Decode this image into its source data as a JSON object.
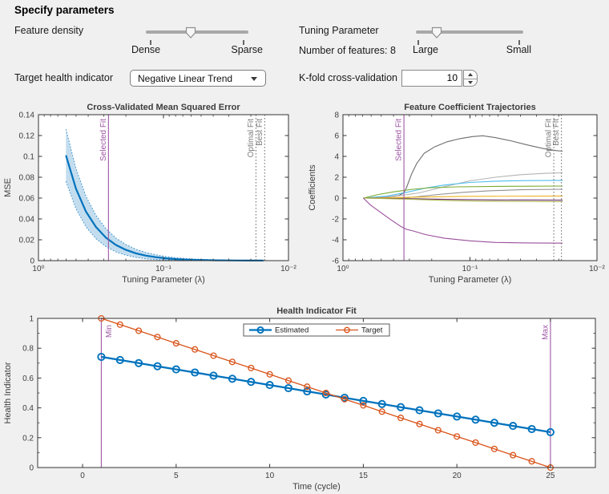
{
  "header": {
    "title": "Specify parameters"
  },
  "controls": {
    "feature_density": {
      "label": "Feature density",
      "min_label": "Dense",
      "max_label": "Sparse",
      "value_pct": 44
    },
    "tuning_parameter": {
      "label": "Tuning Parameter",
      "min_label": "Large",
      "max_label": "Small",
      "value_pct": 19
    },
    "number_of_features": {
      "text": "Number of features: 8"
    },
    "target_health_indicator": {
      "label": "Target health indicator",
      "value": "Negative Linear Trend"
    },
    "kfold": {
      "label": "K-fold cross-validation",
      "value": "10"
    }
  },
  "colors": {
    "background": "#f0f0f0",
    "matlab_blue": "#0072BD",
    "matlab_orange": "#D95319",
    "annotation_purple": "#9E57A5",
    "annotation_gray": "#7a7a7a"
  },
  "chart_data": [
    {
      "id": "mse",
      "type": "line",
      "title": "Cross-Validated Mean Squared Error",
      "xlabel": "Tuning  Parameter  (λ)",
      "ylabel": "MSE",
      "x_scale": "lambda decreasing left-to-right, plotted as u = -log10(lambda)",
      "xlim": [
        0,
        2
      ],
      "ylim": [
        0,
        0.14
      ],
      "xticks": [
        {
          "v": 0,
          "label": "10⁰"
        },
        {
          "v": 1,
          "label": "10⁻¹"
        },
        {
          "v": 2,
          "label": "10⁻²"
        }
      ],
      "yticks": [
        {
          "v": 0,
          "label": "0"
        },
        {
          "v": 0.02,
          "label": "0.02"
        },
        {
          "v": 0.04,
          "label": "0.04"
        },
        {
          "v": 0.06,
          "label": "0.06"
        },
        {
          "v": 0.08,
          "label": "0.08"
        },
        {
          "v": 0.1,
          "label": "0.1"
        },
        {
          "v": 0.12,
          "label": "0.12"
        },
        {
          "v": 0.14,
          "label": "0.14"
        }
      ],
      "u": [
        0.22,
        0.3,
        0.38,
        0.46,
        0.54,
        0.62,
        0.7,
        0.78,
        0.86,
        0.94,
        1.02,
        1.1,
        1.18,
        1.26,
        1.34,
        1.42,
        1.5,
        1.58,
        1.66,
        1.74,
        1.8
      ],
      "mse": [
        0.101,
        0.069,
        0.047,
        0.0322,
        0.022,
        0.015,
        0.0103,
        0.007,
        0.0048,
        0.0033,
        0.0022,
        0.0015,
        0.001,
        0.0007,
        0.0005,
        0.0003,
        0.0002,
        0.00016,
        0.0001,
        7e-05,
        5e-05
      ],
      "band_upper": [
        0.126,
        0.0882,
        0.0618,
        0.0434,
        0.0306,
        0.0216,
        0.0154,
        0.0109,
        0.0078,
        0.0056,
        0.0039,
        0.0028,
        0.002,
        0.0015,
        0.0011,
        0.0008,
        0.0006,
        0.00046,
        0.0003,
        0.00027,
        0.0002
      ],
      "band_lower": [
        0.076,
        0.0498,
        0.0324,
        0.021,
        0.0134,
        0.0084,
        0.0052,
        0.0031,
        0.0018,
        0.001,
        0.0005,
        0.0002,
        0,
        0,
        0,
        0,
        0,
        0,
        0,
        0,
        0
      ],
      "line_color": "#0072BD",
      "band_fill": "#c3ddef",
      "band_edge_color": "#2f8ac6",
      "vlines": [
        {
          "u": 0.56,
          "label": "Selected Fit",
          "color": "#9E57A5",
          "style": "solid",
          "label_side": "left"
        },
        {
          "u": 1.74,
          "label": "Optimal Fit",
          "color": "#7a7a7a",
          "style": "dotted",
          "label_side": "left"
        },
        {
          "u": 1.81,
          "label": "Best Fit",
          "color": "#7a7a7a",
          "style": "dotted",
          "label_side": "left"
        }
      ]
    },
    {
      "id": "coef",
      "type": "line",
      "title": "Feature Coefficient Trajectories",
      "xlabel": "Tuning  Parameter  (λ)",
      "ylabel": "Coefficients",
      "x_scale": "lambda decreasing left-to-right, plotted as u = -log10(lambda)",
      "xlim": [
        0,
        2
      ],
      "ylim": [
        -6,
        8
      ],
      "xticks": [
        {
          "v": 0,
          "label": "10⁰"
        },
        {
          "v": 1,
          "label": "10⁻¹"
        },
        {
          "v": 2,
          "label": "10⁻²"
        }
      ],
      "yticks": [
        {
          "v": -6,
          "label": "-6"
        },
        {
          "v": -4,
          "label": "-4"
        },
        {
          "v": -2,
          "label": "-2"
        },
        {
          "v": 0,
          "label": "0"
        },
        {
          "v": 2,
          "label": "2"
        },
        {
          "v": 4,
          "label": "4"
        },
        {
          "v": 6,
          "label": "6"
        },
        {
          "v": 8,
          "label": "8"
        }
      ],
      "series": [
        {
          "name": "coef-1",
          "color": "#6e6e6e",
          "points": [
            [
              0.16,
              0
            ],
            [
              0.35,
              0.1
            ],
            [
              0.44,
              0.25
            ],
            [
              0.48,
              0.5
            ],
            [
              0.5,
              1.0
            ],
            [
              0.54,
              2.3
            ],
            [
              0.58,
              3.3
            ],
            [
              0.64,
              4.3
            ],
            [
              0.72,
              4.9
            ],
            [
              0.82,
              5.4
            ],
            [
              0.92,
              5.7
            ],
            [
              1.02,
              5.9
            ],
            [
              1.1,
              5.98
            ],
            [
              1.2,
              5.8
            ],
            [
              1.32,
              5.5
            ],
            [
              1.45,
              5.1
            ],
            [
              1.58,
              4.75
            ],
            [
              1.68,
              4.55
            ],
            [
              1.73,
              4.5
            ]
          ]
        },
        {
          "name": "coef-2",
          "color": "#b4b4b4",
          "points": [
            [
              0.16,
              0
            ],
            [
              0.4,
              0.15
            ],
            [
              0.6,
              0.5
            ],
            [
              0.8,
              1.1
            ],
            [
              1.0,
              1.65
            ],
            [
              1.2,
              2.0
            ],
            [
              1.4,
              2.25
            ],
            [
              1.6,
              2.38
            ],
            [
              1.73,
              2.42
            ]
          ]
        },
        {
          "name": "coef-3",
          "color": "#4DBEEE",
          "points": [
            [
              0.16,
              0
            ],
            [
              0.35,
              0.2
            ],
            [
              0.5,
              0.55
            ],
            [
              0.65,
              0.95
            ],
            [
              0.8,
              1.25
            ],
            [
              1.0,
              1.5
            ],
            [
              1.2,
              1.62
            ],
            [
              1.45,
              1.68
            ],
            [
              1.73,
              1.7
            ]
          ]
        },
        {
          "name": "coef-4",
          "color": "#77AC30",
          "points": [
            [
              0.16,
              0
            ],
            [
              0.28,
              0.35
            ],
            [
              0.4,
              0.6
            ],
            [
              0.55,
              0.85
            ],
            [
              0.7,
              1.0
            ],
            [
              0.9,
              1.08
            ],
            [
              1.2,
              1.12
            ],
            [
              1.73,
              1.15
            ]
          ]
        },
        {
          "name": "coef-5",
          "color": "#919191",
          "points": [
            [
              0.16,
              0
            ],
            [
              0.5,
              0.02
            ],
            [
              0.6,
              0.15
            ],
            [
              0.75,
              0.35
            ],
            [
              0.95,
              0.55
            ],
            [
              1.15,
              0.7
            ],
            [
              1.4,
              0.8
            ],
            [
              1.73,
              0.85
            ]
          ]
        },
        {
          "name": "coef-6",
          "color": "#EDB120",
          "points": [
            [
              0.16,
              0
            ],
            [
              0.4,
              0.05
            ],
            [
              0.7,
              0.12
            ],
            [
              1.0,
              0.17
            ],
            [
              1.73,
              0.2
            ]
          ]
        },
        {
          "name": "coef-7",
          "color": "#6b3069",
          "points": [
            [
              0.16,
              0
            ],
            [
              0.5,
              -0.05
            ],
            [
              0.8,
              -0.12
            ],
            [
              1.2,
              -0.18
            ],
            [
              1.73,
              -0.2
            ]
          ]
        },
        {
          "name": "coef-8",
          "color": "#aab84f",
          "points": [
            [
              0.16,
              0
            ],
            [
              0.5,
              -0.1
            ],
            [
              0.8,
              -0.22
            ],
            [
              1.1,
              -0.3
            ],
            [
              1.73,
              -0.35
            ]
          ]
        },
        {
          "name": "coef-9",
          "color": "#9A4F9C",
          "points": [
            [
              0.16,
              0
            ],
            [
              0.22,
              -0.7
            ],
            [
              0.3,
              -1.4
            ],
            [
              0.38,
              -2.1
            ],
            [
              0.46,
              -2.75
            ],
            [
              0.5,
              -3.0
            ],
            [
              0.55,
              -3.15
            ],
            [
              0.65,
              -3.5
            ],
            [
              0.8,
              -3.85
            ],
            [
              1.0,
              -4.1
            ],
            [
              1.2,
              -4.25
            ],
            [
              1.45,
              -4.3
            ],
            [
              1.73,
              -4.32
            ]
          ]
        }
      ],
      "vlines": [
        {
          "u": 0.48,
          "label": "Selected Fit",
          "color": "#9E57A5",
          "style": "solid",
          "label_side": "left"
        },
        {
          "u": 1.66,
          "label": "Optimal Fit",
          "color": "#7a7a7a",
          "style": "dotted",
          "label_side": "left"
        },
        {
          "u": 1.72,
          "label": "Best Fit",
          "color": "#7a7a7a",
          "style": "dotted",
          "label_side": "left"
        }
      ]
    },
    {
      "id": "health",
      "type": "line",
      "title": "Health Indicator Fit",
      "xlabel": "Time (cycle)",
      "ylabel": "Health Indicator",
      "xlim": [
        -2.4,
        27.4
      ],
      "ylim": [
        0,
        1
      ],
      "xticks": [
        {
          "v": 0,
          "label": "0"
        },
        {
          "v": 5,
          "label": "5"
        },
        {
          "v": 10,
          "label": "10"
        },
        {
          "v": 15,
          "label": "15"
        },
        {
          "v": 20,
          "label": "20"
        },
        {
          "v": 25,
          "label": "25"
        }
      ],
      "yticks": [
        {
          "v": 0,
          "label": "0"
        },
        {
          "v": 0.2,
          "label": "0.2"
        },
        {
          "v": 0.4,
          "label": "0.4"
        },
        {
          "v": 0.6,
          "label": "0.6"
        },
        {
          "v": 0.8,
          "label": "0.8"
        },
        {
          "v": 1,
          "label": "1"
        }
      ],
      "cycles": [
        1,
        2,
        3,
        4,
        5,
        6,
        7,
        8,
        9,
        10,
        11,
        12,
        13,
        14,
        15,
        16,
        17,
        18,
        19,
        20,
        21,
        22,
        23,
        24,
        25
      ],
      "series": [
        {
          "name": "Estimated",
          "color": "#0072BD",
          "line_width": 2.3,
          "marker_r": 4.1,
          "marker_w": 1.9,
          "values": [
            0.742,
            0.721,
            0.7,
            0.679,
            0.658,
            0.637,
            0.616,
            0.595,
            0.574,
            0.553,
            0.532,
            0.511,
            0.49,
            0.468,
            0.447,
            0.426,
            0.405,
            0.384,
            0.363,
            0.342,
            0.321,
            0.3,
            0.279,
            0.258,
            0.237
          ]
        },
        {
          "name": "Target",
          "color": "#D95319",
          "line_width": 1.3,
          "marker_r": 3.4,
          "marker_w": 1.3,
          "values": [
            1.0,
            0.958,
            0.917,
            0.875,
            0.833,
            0.792,
            0.75,
            0.708,
            0.667,
            0.625,
            0.583,
            0.542,
            0.5,
            0.458,
            0.417,
            0.375,
            0.333,
            0.292,
            0.25,
            0.208,
            0.167,
            0.125,
            0.083,
            0.042,
            0.0
          ]
        }
      ],
      "vlines": [
        {
          "x": 1,
          "label": "Min",
          "color": "#9E57A5",
          "style": "solid",
          "label_side": "right"
        },
        {
          "x": 25,
          "label": "Max",
          "color": "#9E57A5",
          "style": "solid",
          "label_side": "left"
        }
      ],
      "legend": {
        "entries": [
          "Estimated",
          "Target"
        ]
      }
    }
  ]
}
